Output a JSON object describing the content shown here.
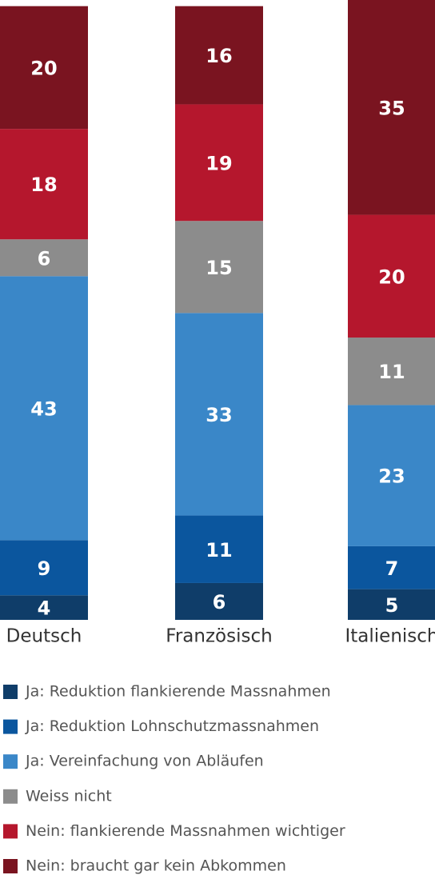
{
  "chart_data": {
    "type": "stacked_bar",
    "categories": [
      "Deutsch",
      "Französisch",
      "Italienisch"
    ],
    "series": [
      {
        "name": "Ja: Reduktion flankierende Massnahmen",
        "color": "#0f3d69",
        "values": [
          4,
          6,
          5
        ]
      },
      {
        "name": "Ja: Reduktion Lohnschutzmassnahmen",
        "color": "#0b569e",
        "values": [
          9,
          11,
          7
        ]
      },
      {
        "name": "Ja: Vereinfachung von Abläufen",
        "color": "#3a87c8",
        "values": [
          43,
          33,
          23
        ]
      },
      {
        "name": "Weiss nicht",
        "color": "#8c8c8c",
        "values": [
          6,
          15,
          11
        ]
      },
      {
        "name": "Nein: flankierende Massnahmen wichtiger",
        "color": "#b5172d",
        "values": [
          18,
          19,
          20
        ]
      },
      {
        "name": "Nein: braucht gar kein Abkommen",
        "color": "#7a1420",
        "values": [
          20,
          16,
          35
        ]
      }
    ],
    "ylim": [
      0,
      101
    ]
  }
}
